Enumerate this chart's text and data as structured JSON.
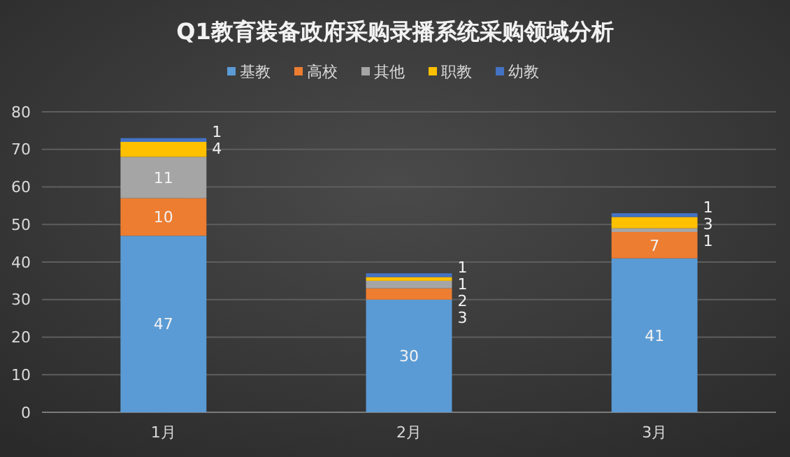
{
  "chart_data": {
    "type": "bar",
    "title": "Q1教育装备政府采购录播系统采购领域分析",
    "categories": [
      "1月",
      "2月",
      "3月"
    ],
    "stacked": true,
    "data_labels": true,
    "legend": "top",
    "grid": "y",
    "ylim": [
      0,
      80
    ],
    "yticks": [
      0,
      10,
      20,
      30,
      40,
      50,
      60,
      70,
      80
    ],
    "series": [
      {
        "name": "基教",
        "color": "#5b9bd5",
        "values": [
          47,
          30,
          41
        ]
      },
      {
        "name": "高校",
        "color": "#ed7d31",
        "values": [
          10,
          3,
          7
        ]
      },
      {
        "name": "其他",
        "color": "#a5a5a5",
        "values": [
          11,
          2,
          1
        ]
      },
      {
        "name": "职教",
        "color": "#ffc000",
        "values": [
          4,
          1,
          3
        ]
      },
      {
        "name": "幼教",
        "color": "#4472c4",
        "values": [
          1,
          1,
          1
        ]
      }
    ]
  }
}
